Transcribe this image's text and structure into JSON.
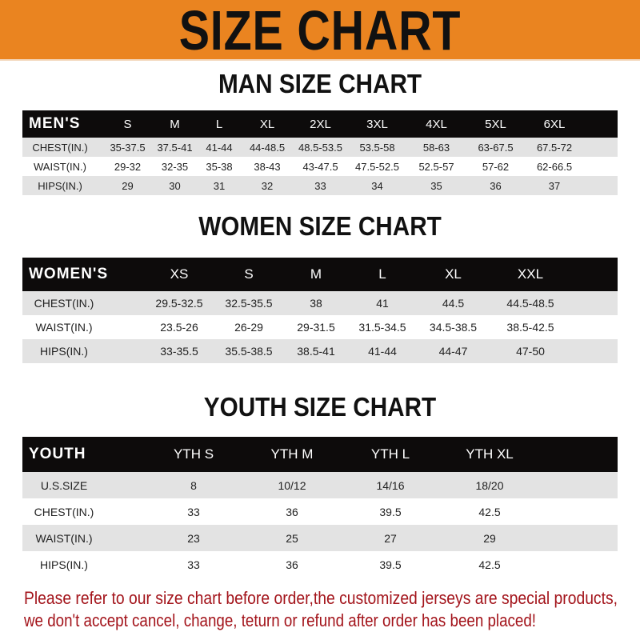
{
  "banner": {
    "title": "SIZE CHART",
    "color": "#ea8420"
  },
  "men": {
    "title": "MAN SIZE CHART",
    "headers": [
      "MEN'S",
      "S",
      "M",
      "L",
      "XL",
      "2XL",
      "3XL",
      "4XL",
      "5XL",
      "6XL"
    ],
    "rows": [
      [
        "CHEST(IN.)",
        "35-37.5",
        "37.5-41",
        "41-44",
        "44-48.5",
        "48.5-53.5",
        "53.5-58",
        "58-63",
        "63-67.5",
        "67.5-72"
      ],
      [
        "WAIST(IN.)",
        "29-32",
        "32-35",
        "35-38",
        "38-43",
        "43-47.5",
        "47.5-52.5",
        "52.5-57",
        "57-62",
        "62-66.5"
      ],
      [
        "HIPS(IN.)",
        "29",
        "30",
        "31",
        "32",
        "33",
        "34",
        "35",
        "36",
        "37"
      ]
    ]
  },
  "women": {
    "title": "WOMEN SIZE CHART",
    "headers": [
      "WOMEN'S",
      "XS",
      "S",
      "M",
      "L",
      "XL",
      "XXL"
    ],
    "rows": [
      [
        "CHEST(IN.)",
        "29.5-32.5",
        "32.5-35.5",
        "38",
        "41",
        "44.5",
        "44.5-48.5"
      ],
      [
        "WAIST(IN.)",
        "23.5-26",
        "26-29",
        "29-31.5",
        "31.5-34.5",
        "34.5-38.5",
        "38.5-42.5"
      ],
      [
        "HIPS(IN.)",
        "33-35.5",
        "35.5-38.5",
        "38.5-41",
        "41-44",
        "44-47",
        "47-50"
      ]
    ]
  },
  "youth": {
    "title": "YOUTH SIZE CHART",
    "headers": [
      "YOUTH",
      "YTH S",
      "YTH M",
      "YTH L",
      "YTH XL"
    ],
    "rows": [
      [
        "U.S.SIZE",
        "8",
        "10/12",
        "14/16",
        "18/20"
      ],
      [
        "CHEST(IN.)",
        "33",
        "36",
        "39.5",
        "42.5"
      ],
      [
        "WAIST(IN.)",
        "23",
        "25",
        "27",
        "29"
      ],
      [
        "HIPS(IN.)",
        "33",
        "36",
        "39.5",
        "42.5"
      ]
    ]
  },
  "note": {
    "line1": "Please refer to our size chart before order,the customized jerseys are special products,",
    "line2": "we don't accept cancel, change, teturn or refund after order has been placed!",
    "color": "#a3141b"
  }
}
